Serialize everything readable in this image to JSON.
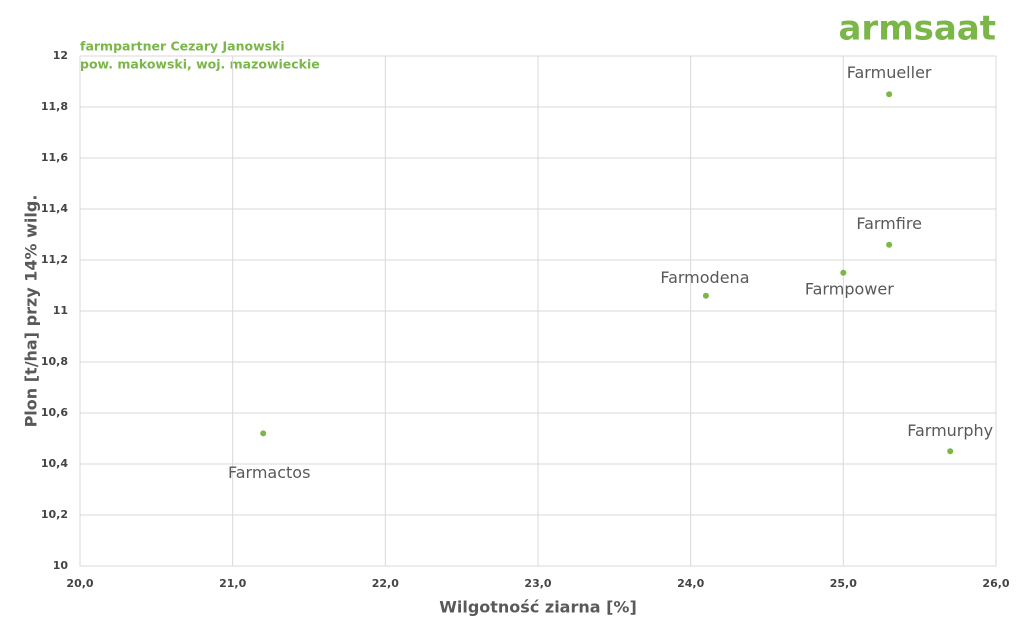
{
  "brand": "armsaat",
  "chart_data": {
    "type": "scatter",
    "title": "farmpartner Cezary Janowski",
    "subtitle": "pow. makowski, woj. mazowieckie",
    "x_label": "Wilgotność ziarna [%]",
    "y_label": "Plon [t/ha] przy 14% wilg.",
    "point_labels": [
      "Farmactos",
      "Farmodena",
      "Farmpower",
      "Farmfire",
      "Farmueller",
      "Farmurphy"
    ],
    "x": [
      21.2,
      24.1,
      25.0,
      25.3,
      25.3,
      25.7
    ],
    "values": [
      10.52,
      11.06,
      11.15,
      11.26,
      11.85,
      10.45
    ],
    "color": "#7ab648",
    "xlim": [
      20,
      26
    ],
    "xticks": [
      {
        "value": 20,
        "label": "20,0"
      },
      {
        "value": 21,
        "label": "21,0"
      },
      {
        "value": 22,
        "label": "22,0"
      },
      {
        "value": 23,
        "label": "23,0"
      },
      {
        "value": 24,
        "label": "24,0"
      },
      {
        "value": 25,
        "label": "25,0"
      },
      {
        "value": 26,
        "label": "26,0"
      }
    ],
    "ylim": [
      10,
      12
    ],
    "yticks": [
      10,
      {
        "value": 10.2,
        "label": "10,2"
      },
      {
        "value": 10.4,
        "label": "10,4"
      },
      {
        "value": 10.6,
        "label": "10,6"
      },
      {
        "value": 10.8,
        "label": "10,8"
      },
      11,
      {
        "value": 11.2,
        "label": "11,2"
      },
      {
        "value": 11.4,
        "label": "11,4"
      },
      {
        "value": 11.6,
        "label": "11,6"
      },
      {
        "value": 11.8,
        "label": "11,8"
      },
      12
    ],
    "grid": true
  }
}
